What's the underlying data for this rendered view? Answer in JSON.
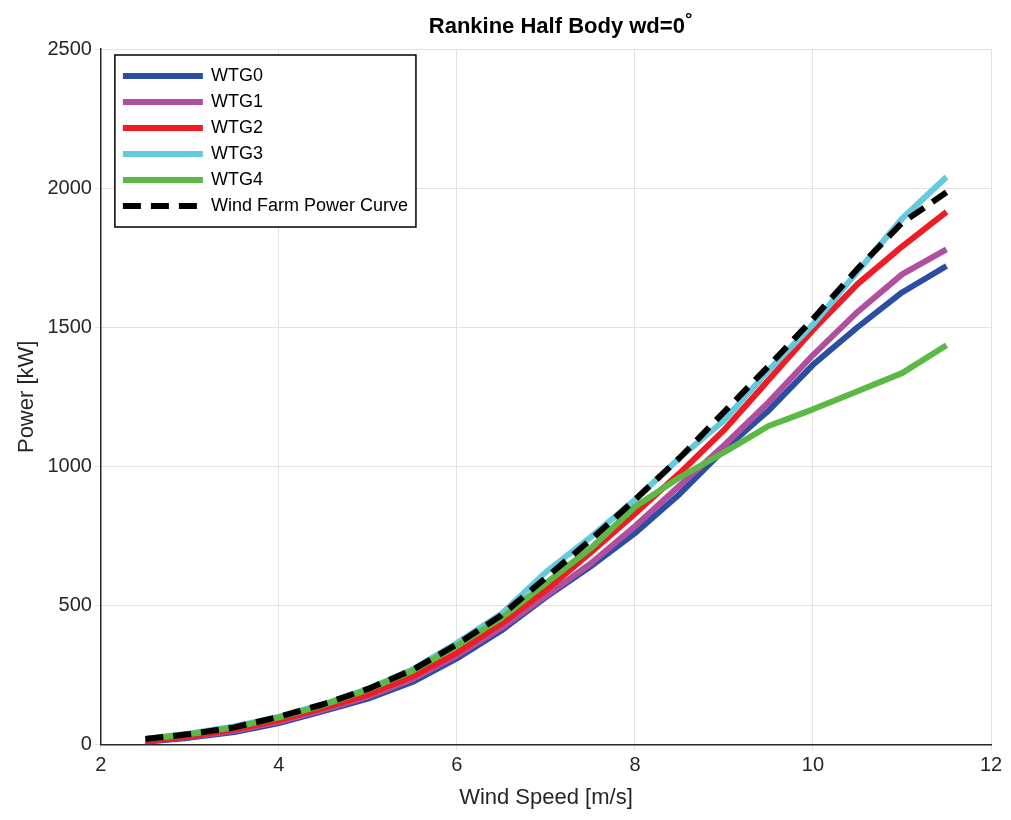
{
  "chart_data": {
    "type": "line",
    "title": "Rankine Half Body wd=0$^{°}$",
    "xlabel": "Wind Speed [m/s]",
    "ylabel": "Power [kW]",
    "x": [
      2.5,
      3,
      3.5,
      4,
      4.5,
      5,
      5.5,
      6,
      6.5,
      7,
      7.5,
      8,
      8.5,
      9,
      9.5,
      10,
      10.5,
      11,
      11.5
    ],
    "series": [
      {
        "name": "WTG0",
        "color": "#2b4ea2",
        "values": [
          10,
          25,
          45,
          77,
          120,
          165,
          225,
          310,
          410,
          530,
          640,
          760,
          900,
          1060,
          1200,
          1365,
          1500,
          1625,
          1720
        ]
      },
      {
        "name": "WTG1",
        "color": "#b04f9e",
        "values": [
          12,
          28,
          50,
          82,
          125,
          172,
          235,
          320,
          420,
          535,
          650,
          785,
          930,
          1075,
          1230,
          1400,
          1555,
          1690,
          1780
        ]
      },
      {
        "name": "WTG2",
        "color": "#ee1c25",
        "values": [
          12,
          30,
          55,
          88,
          132,
          180,
          245,
          330,
          435,
          555,
          690,
          830,
          975,
          1130,
          1310,
          1490,
          1655,
          1790,
          1915
        ]
      },
      {
        "name": "WTG3",
        "color": "#66c9dc",
        "values": [
          20,
          40,
          65,
          100,
          145,
          200,
          270,
          365,
          470,
          620,
          745,
          880,
          1030,
          1165,
          1345,
          1510,
          1700,
          1890,
          2040
        ]
      },
      {
        "name": "WTG4",
        "color": "#5db946",
        "values": [
          20,
          38,
          62,
          98,
          142,
          198,
          265,
          355,
          455,
          580,
          705,
          855,
          960,
          1050,
          1145,
          1205,
          1270,
          1335,
          1435
        ]
      },
      {
        "name": "Wind Farm Power Curve",
        "color": "#000000",
        "line_style": "dashed",
        "values": [
          20,
          38,
          62,
          100,
          145,
          200,
          268,
          360,
          465,
          600,
          735,
          880,
          1030,
          1195,
          1360,
          1530,
          1710,
          1875,
          1985
        ]
      }
    ],
    "xlim": [
      2,
      12
    ],
    "xticks": [
      2,
      4,
      6,
      8,
      10,
      12
    ],
    "ylim": [
      0,
      2500
    ],
    "yticks": [
      0,
      500,
      1000,
      1500,
      2000,
      2500
    ],
    "grid": true,
    "legend": "top left",
    "marker": "none",
    "line_style": "solid"
  }
}
